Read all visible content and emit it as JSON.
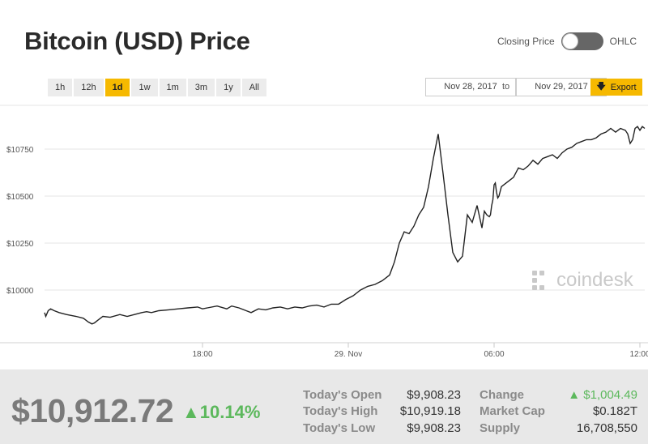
{
  "title": "Bitcoin (USD) Price",
  "toggle": {
    "left_label": "Closing Price",
    "right_label": "OHLC"
  },
  "ranges": [
    "1h",
    "12h",
    "1d",
    "1w",
    "1m",
    "3m",
    "1y",
    "All"
  ],
  "active_range": "1d",
  "date_from": "Nov 28, 2017",
  "date_to_label": "to",
  "date_to": "Nov 29, 2017",
  "export_label": "Export",
  "watermark": "coindesk",
  "colors": {
    "accent": "#f6b900",
    "up": "#5cb85c",
    "line": "#222222"
  },
  "chart_data": {
    "type": "line",
    "y_ticks": [
      "$10750",
      "$10500",
      "$10250",
      "$10000"
    ],
    "y_tick_values": [
      10750,
      10500,
      10250,
      10000
    ],
    "x_ticks": [
      "18:00",
      "29. Nov",
      "06:00",
      "12:00"
    ],
    "x_tick_hours": [
      6,
      12,
      18,
      24
    ],
    "x_range_hours": [
      -0.5,
      24.2
    ],
    "grid": true,
    "series": [
      {
        "x": [
          -0.5,
          -0.45,
          -0.35,
          -0.25,
          -0.1,
          0.1,
          0.4,
          0.8,
          1.1,
          1.3,
          1.45,
          1.55,
          1.7,
          1.9,
          2.2,
          2.6,
          2.9,
          3.2,
          3.5,
          3.7,
          3.9,
          4.2,
          4.6,
          5.0,
          5.4,
          5.8,
          6.0,
          6.2,
          6.6,
          7.0,
          7.2,
          7.5,
          7.8,
          8.0,
          8.3,
          8.6,
          8.9,
          9.2,
          9.5,
          9.8,
          10.1,
          10.4,
          10.7,
          11.0,
          11.3,
          11.6,
          11.9,
          12.2,
          12.5,
          12.8,
          13.1,
          13.4,
          13.7,
          13.9,
          14.1,
          14.3,
          14.5,
          14.7,
          14.9,
          15.1,
          15.3,
          15.5,
          15.7,
          15.9,
          16.1,
          16.3,
          16.5,
          16.7,
          16.9,
          17.1,
          17.3,
          17.5,
          17.6,
          17.7,
          17.8,
          17.85,
          17.9,
          17.95,
          18.0,
          18.05,
          18.1,
          18.15,
          18.2,
          18.3,
          18.4,
          18.6,
          18.8,
          19.0,
          19.2,
          19.4,
          19.6,
          19.8,
          20.0,
          20.2,
          20.4,
          20.6,
          20.8,
          21.0,
          21.2,
          21.4,
          21.6,
          21.8,
          22.0,
          22.2,
          22.4,
          22.6,
          22.8,
          23.0,
          23.2,
          23.4,
          23.5,
          23.6,
          23.7,
          23.8,
          23.9,
          24.0,
          24.1,
          24.2
        ],
        "y": [
          9880,
          9860,
          9890,
          9900,
          9890,
          9880,
          9870,
          9860,
          9850,
          9830,
          9820,
          9825,
          9840,
          9860,
          9855,
          9870,
          9860,
          9870,
          9880,
          9885,
          9880,
          9890,
          9895,
          9900,
          9905,
          9910,
          9900,
          9905,
          9915,
          9900,
          9915,
          9905,
          9890,
          9880,
          9900,
          9895,
          9905,
          9910,
          9900,
          9910,
          9905,
          9915,
          9920,
          9910,
          9925,
          9925,
          9950,
          9970,
          10000,
          10020,
          10030,
          10050,
          10080,
          10150,
          10250,
          10310,
          10300,
          10340,
          10400,
          10440,
          10550,
          10700,
          10830,
          10620,
          10400,
          10200,
          10150,
          10180,
          10400,
          10360,
          10450,
          10330,
          10420,
          10400,
          10390,
          10400,
          10450,
          10480,
          10560,
          10570,
          10520,
          10490,
          10500,
          10550,
          10560,
          10580,
          10600,
          10650,
          10640,
          10660,
          10690,
          10670,
          10700,
          10710,
          10720,
          10700,
          10730,
          10750,
          10760,
          10780,
          10790,
          10800,
          10800,
          10810,
          10830,
          10840,
          10860,
          10840,
          10860,
          10850,
          10830,
          10780,
          10800,
          10860,
          10870,
          10850,
          10870,
          10860
        ]
      }
    ]
  },
  "footer": {
    "price": "$10,912.72",
    "change_pct": "▲10.14%",
    "stats": [
      {
        "label": "Today's Open",
        "value": "$9,908.23"
      },
      {
        "label": "Today's High",
        "value": "$10,919.18"
      },
      {
        "label": "Today's Low",
        "value": "$9,908.23"
      }
    ],
    "stats2": [
      {
        "label": "Change",
        "value": "▲ $1,004.49"
      },
      {
        "label": "Market Cap",
        "value": "$0.182T"
      },
      {
        "label": "Supply",
        "value": "16,708,550"
      }
    ]
  }
}
